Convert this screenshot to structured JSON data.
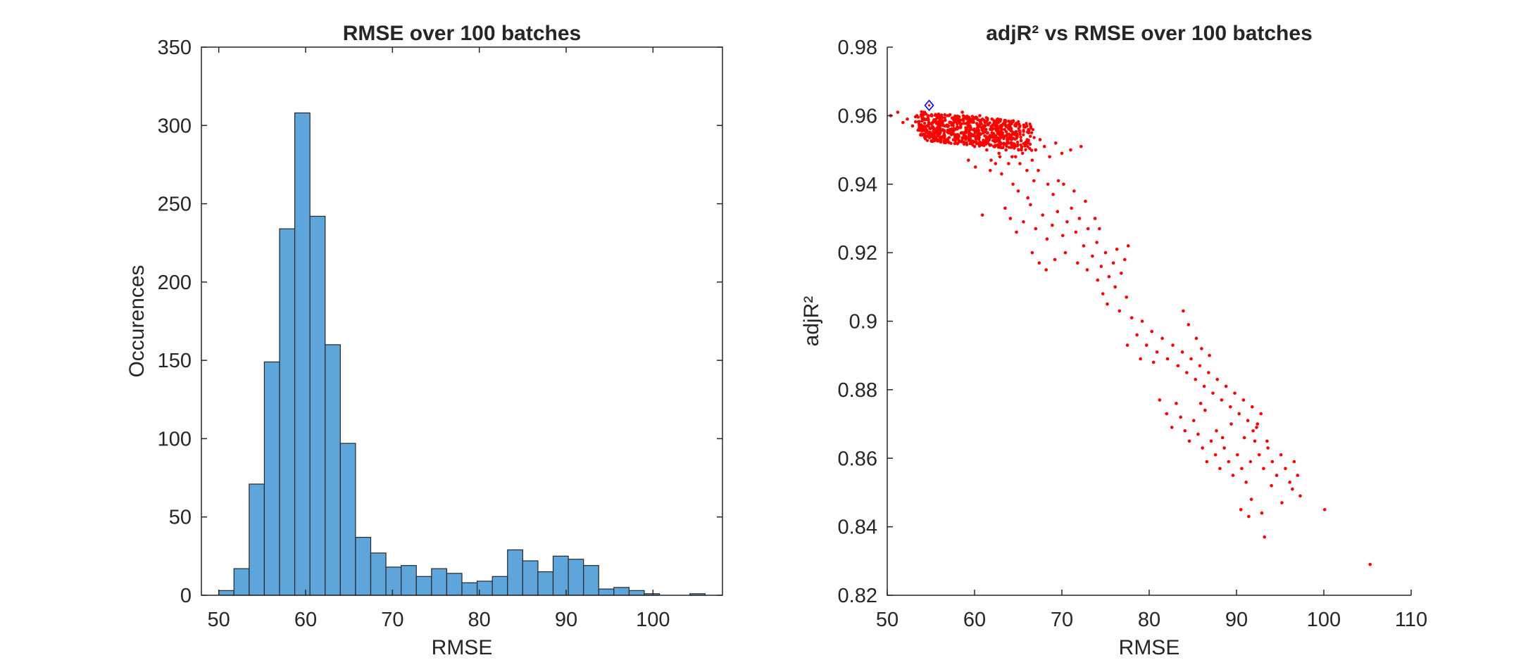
{
  "chart_data": [
    {
      "type": "bar",
      "subtype": "histogram",
      "title": "RMSE over 100 batches",
      "xlabel": "RMSE",
      "ylabel": "Occurences",
      "xlim": [
        48,
        108
      ],
      "ylim": [
        0,
        350
      ],
      "xticks": [
        50,
        60,
        70,
        80,
        90,
        100
      ],
      "yticks": [
        0,
        50,
        100,
        150,
        200,
        250,
        300,
        350
      ],
      "bin_width": 1.75,
      "bin_edges_start": 50,
      "values": [
        3,
        17,
        71,
        149,
        234,
        308,
        242,
        160,
        97,
        37,
        27,
        18,
        19,
        12,
        17,
        14,
        8,
        9,
        12,
        29,
        22,
        15,
        25,
        23,
        19,
        4,
        5,
        3,
        1,
        0,
        0,
        1
      ],
      "bar_color": "#5DA5DA",
      "edge_color": "#262626",
      "grid": false
    },
    {
      "type": "scatter",
      "title": "adjR² vs RMSE over 100 batches",
      "xlabel": "RMSE",
      "ylabel": "adjR²",
      "xlim": [
        50,
        110
      ],
      "ylim": [
        0.82,
        0.98
      ],
      "xticks": [
        50,
        60,
        70,
        80,
        90,
        100,
        110
      ],
      "yticks": [
        0.82,
        0.84,
        0.86,
        0.88,
        0.9,
        0.92,
        0.94,
        0.96,
        0.98
      ],
      "yticklabels": [
        "0.82",
        "0.84",
        "0.86",
        "0.88",
        "0.9",
        "0.92",
        "0.94",
        "0.96",
        "0.98"
      ],
      "point_color": "#FF0000",
      "highlight_color": "#0000FF",
      "grid": false,
      "highlight_point": {
        "x": 54.8,
        "y": 0.963
      },
      "points": [
        [
          50.4,
          0.96
        ],
        [
          51.2,
          0.961
        ],
        [
          51.8,
          0.958
        ],
        [
          52.3,
          0.959
        ],
        [
          52.9,
          0.957
        ],
        [
          53.4,
          0.96
        ],
        [
          53.9,
          0.956
        ],
        [
          54.3,
          0.959
        ],
        [
          54.7,
          0.957
        ],
        [
          55.0,
          0.96
        ],
        [
          55.3,
          0.955
        ],
        [
          55.6,
          0.958
        ],
        [
          55.9,
          0.956
        ],
        [
          56.1,
          0.959
        ],
        [
          56.4,
          0.954
        ],
        [
          56.6,
          0.957
        ],
        [
          56.9,
          0.96
        ],
        [
          57.1,
          0.955
        ],
        [
          57.3,
          0.958
        ],
        [
          57.6,
          0.953
        ],
        [
          57.8,
          0.956
        ],
        [
          58.0,
          0.959
        ],
        [
          58.2,
          0.954
        ],
        [
          58.4,
          0.957
        ],
        [
          58.6,
          0.961
        ],
        [
          58.8,
          0.952
        ],
        [
          59.0,
          0.955
        ],
        [
          59.2,
          0.958
        ],
        [
          59.4,
          0.953
        ],
        [
          59.6,
          0.956
        ],
        [
          59.8,
          0.959
        ],
        [
          60.0,
          0.951
        ],
        [
          60.2,
          0.954
        ],
        [
          60.4,
          0.957
        ],
        [
          60.6,
          0.96
        ],
        [
          60.8,
          0.952
        ],
        [
          61.0,
          0.955
        ],
        [
          61.2,
          0.958
        ],
        [
          61.4,
          0.95
        ],
        [
          61.6,
          0.953
        ],
        [
          61.8,
          0.956
        ],
        [
          62.0,
          0.959
        ],
        [
          62.2,
          0.951
        ],
        [
          62.4,
          0.954
        ],
        [
          62.6,
          0.957
        ],
        [
          62.8,
          0.949
        ],
        [
          63.0,
          0.952
        ],
        [
          63.2,
          0.955
        ],
        [
          63.4,
          0.958
        ],
        [
          63.6,
          0.95
        ],
        [
          63.8,
          0.953
        ],
        [
          64.0,
          0.956
        ],
        [
          64.3,
          0.948
        ],
        [
          64.6,
          0.951
        ],
        [
          64.9,
          0.954
        ],
        [
          65.2,
          0.957
        ],
        [
          65.5,
          0.949
        ],
        [
          65.8,
          0.952
        ],
        [
          66.2,
          0.955
        ],
        [
          66.6,
          0.947
        ],
        [
          67.0,
          0.95
        ],
        [
          67.5,
          0.953
        ],
        [
          68.0,
          0.951
        ],
        [
          68.6,
          0.948
        ],
        [
          69.3,
          0.952
        ],
        [
          70.0,
          0.949
        ],
        [
          71.0,
          0.95
        ],
        [
          72.2,
          0.951
        ],
        [
          57.0,
          0.957
        ],
        [
          58.5,
          0.955
        ],
        [
          59.5,
          0.956
        ],
        [
          60.5,
          0.954
        ],
        [
          61.5,
          0.955
        ],
        [
          62.5,
          0.953
        ],
        [
          56.0,
          0.957
        ],
        [
          55.2,
          0.958
        ],
        [
          60.9,
          0.931
        ],
        [
          61.8,
          0.944
        ],
        [
          62.4,
          0.946
        ],
        [
          63.1,
          0.943
        ],
        [
          59.3,
          0.947
        ],
        [
          60.1,
          0.945
        ],
        [
          64.4,
          0.94
        ],
        [
          65.0,
          0.938
        ],
        [
          66.1,
          0.936
        ],
        [
          66.8,
          0.941
        ],
        [
          67.3,
          0.944
        ],
        [
          68.4,
          0.94
        ],
        [
          69.0,
          0.937
        ],
        [
          69.6,
          0.941
        ],
        [
          63.5,
          0.933
        ],
        [
          64.1,
          0.93
        ],
        [
          64.8,
          0.926
        ],
        [
          65.6,
          0.929
        ],
        [
          66.4,
          0.934
        ],
        [
          67.0,
          0.927
        ],
        [
          67.8,
          0.931
        ],
        [
          68.3,
          0.924
        ],
        [
          68.9,
          0.928
        ],
        [
          69.5,
          0.932
        ],
        [
          70.1,
          0.925
        ],
        [
          70.6,
          0.929
        ],
        [
          71.1,
          0.933
        ],
        [
          71.6,
          0.926
        ],
        [
          72.0,
          0.93
        ],
        [
          72.5,
          0.922
        ],
        [
          73.0,
          0.927
        ],
        [
          73.5,
          0.919
        ],
        [
          74.0,
          0.923
        ],
        [
          74.5,
          0.916
        ],
        [
          75.0,
          0.92
        ],
        [
          75.4,
          0.913
        ],
        [
          75.9,
          0.917
        ],
        [
          76.3,
          0.921
        ],
        [
          76.8,
          0.914
        ],
        [
          77.2,
          0.918
        ],
        [
          77.6,
          0.922
        ],
        [
          66.6,
          0.92
        ],
        [
          67.4,
          0.917
        ],
        [
          68.2,
          0.915
        ],
        [
          69.2,
          0.918
        ],
        [
          70.4,
          0.92
        ],
        [
          71.8,
          0.917
        ],
        [
          72.9,
          0.915
        ],
        [
          74.1,
          0.912
        ],
        [
          74.7,
          0.908
        ],
        [
          75.2,
          0.905
        ],
        [
          76.1,
          0.91
        ],
        [
          76.6,
          0.903
        ],
        [
          77.4,
          0.907
        ],
        [
          78.0,
          0.901
        ],
        [
          78.6,
          0.896
        ],
        [
          79.2,
          0.9
        ],
        [
          79.7,
          0.893
        ],
        [
          80.3,
          0.897
        ],
        [
          80.9,
          0.891
        ],
        [
          81.5,
          0.895
        ],
        [
          82.1,
          0.889
        ],
        [
          82.7,
          0.893
        ],
        [
          83.3,
          0.887
        ],
        [
          83.8,
          0.891
        ],
        [
          84.3,
          0.885
        ],
        [
          84.8,
          0.889
        ],
        [
          85.3,
          0.883
        ],
        [
          85.8,
          0.887
        ],
        [
          86.3,
          0.881
        ],
        [
          86.8,
          0.885
        ],
        [
          87.3,
          0.879
        ],
        [
          87.8,
          0.883
        ],
        [
          88.3,
          0.877
        ],
        [
          88.8,
          0.881
        ],
        [
          89.3,
          0.875
        ],
        [
          89.8,
          0.879
        ],
        [
          90.3,
          0.873
        ],
        [
          90.8,
          0.877
        ],
        [
          91.3,
          0.871
        ],
        [
          91.8,
          0.875
        ],
        [
          92.3,
          0.869
        ],
        [
          92.8,
          0.873
        ],
        [
          77.5,
          0.893
        ],
        [
          79.0,
          0.889
        ],
        [
          80.5,
          0.888
        ],
        [
          81.2,
          0.877
        ],
        [
          82.0,
          0.873
        ],
        [
          82.6,
          0.869
        ],
        [
          83.1,
          0.876
        ],
        [
          83.6,
          0.872
        ],
        [
          84.1,
          0.868
        ],
        [
          84.6,
          0.865
        ],
        [
          85.1,
          0.871
        ],
        [
          85.6,
          0.867
        ],
        [
          86.1,
          0.863
        ],
        [
          86.6,
          0.859
        ],
        [
          87.1,
          0.865
        ],
        [
          87.6,
          0.861
        ],
        [
          88.1,
          0.857
        ],
        [
          88.6,
          0.863
        ],
        [
          89.1,
          0.859
        ],
        [
          89.6,
          0.855
        ],
        [
          90.1,
          0.861
        ],
        [
          90.6,
          0.857
        ],
        [
          91.1,
          0.853
        ],
        [
          91.6,
          0.859
        ],
        [
          92.1,
          0.865
        ],
        [
          92.6,
          0.861
        ],
        [
          93.1,
          0.857
        ],
        [
          93.6,
          0.863
        ],
        [
          94.1,
          0.859
        ],
        [
          94.6,
          0.855
        ],
        [
          95.1,
          0.861
        ],
        [
          95.6,
          0.857
        ],
        [
          96.1,
          0.853
        ],
        [
          96.6,
          0.859
        ],
        [
          97.0,
          0.855
        ],
        [
          97.3,
          0.849
        ],
        [
          96.4,
          0.851
        ],
        [
          95.2,
          0.847
        ],
        [
          94.0,
          0.852
        ],
        [
          92.9,
          0.844
        ],
        [
          91.7,
          0.848
        ],
        [
          90.5,
          0.845
        ],
        [
          91.4,
          0.843
        ],
        [
          93.2,
          0.837
        ],
        [
          100.1,
          0.845
        ],
        [
          105.3,
          0.829
        ],
        [
          83.9,
          0.903
        ],
        [
          84.5,
          0.899
        ],
        [
          85.4,
          0.895
        ],
        [
          86.0,
          0.892
        ],
        [
          86.9,
          0.89
        ],
        [
          85.9,
          0.876
        ],
        [
          86.4,
          0.874
        ],
        [
          87.7,
          0.868
        ],
        [
          88.4,
          0.866
        ],
        [
          89.4,
          0.87
        ],
        [
          90.9,
          0.866
        ],
        [
          91.9,
          0.868
        ],
        [
          92.4,
          0.87
        ],
        [
          93.5,
          0.865
        ],
        [
          73.8,
          0.93
        ],
        [
          74.3,
          0.927
        ],
        [
          72.7,
          0.935
        ],
        [
          71.4,
          0.938
        ],
        [
          70.2,
          0.94
        ],
        [
          66.0,
          0.944
        ],
        [
          65.2,
          0.946
        ],
        [
          64.7,
          0.948
        ],
        [
          63.9,
          0.946
        ],
        [
          62.9,
          0.948
        ],
        [
          61.9,
          0.947
        ]
      ]
    }
  ]
}
